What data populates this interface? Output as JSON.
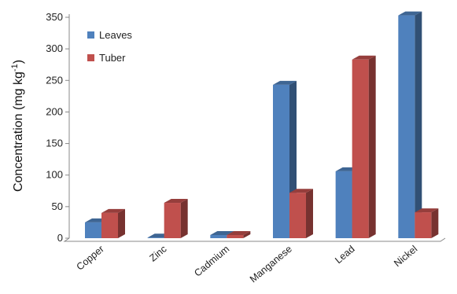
{
  "chart_data": {
    "type": "bar",
    "title": "",
    "xlabel": "",
    "ylabel": "Concentration (mg kg",
    "ylabel_sup": "-1",
    "ylabel_close": ")",
    "ylim": [
      0,
      350
    ],
    "yticks": [
      0,
      50,
      100,
      150,
      200,
      250,
      300,
      350
    ],
    "grid": false,
    "legend": "top-left",
    "categories": [
      "Copper",
      "Zinc",
      "Cadmium",
      "Manganese",
      "Lead",
      "Nickel"
    ],
    "series": [
      {
        "name": "Leaves",
        "color": "#4F81BD",
        "values": [
          25,
          1,
          5,
          243,
          106,
          353
        ]
      },
      {
        "name": "Tuber",
        "color": "#C0504D",
        "values": [
          40,
          56,
          5,
          72,
          283,
          41
        ]
      }
    ]
  }
}
